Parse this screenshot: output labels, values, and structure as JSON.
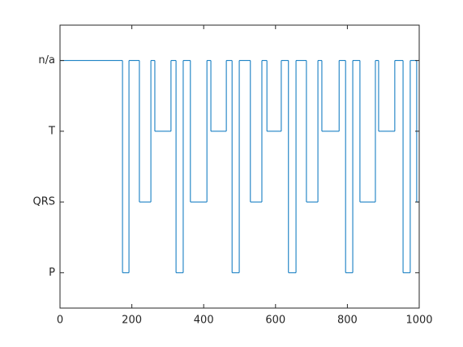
{
  "chart_data": {
    "type": "stairs",
    "x": [
      0,
      174,
      192,
      221,
      253,
      264,
      309,
      323,
      343,
      363,
      409,
      420,
      463,
      479,
      499,
      530,
      562,
      576,
      616,
      636,
      657,
      686,
      718,
      729,
      777,
      795,
      815,
      835,
      878,
      887,
      932,
      955,
      975,
      993,
      1000
    ],
    "values": [
      4,
      1,
      4,
      2,
      4,
      3,
      4,
      1,
      4,
      2,
      4,
      3,
      4,
      1,
      4,
      2,
      4,
      3,
      4,
      1,
      4,
      2,
      4,
      3,
      4,
      1,
      4,
      2,
      4,
      3,
      4,
      1,
      4,
      2,
      2
    ],
    "color": "#0072bd",
    "xlim": [
      0,
      1000
    ],
    "xticks": [
      0,
      200,
      400,
      600,
      800,
      1000
    ],
    "ylim": [
      0.5,
      4.5
    ],
    "yticks": [
      {
        "value": 1,
        "label": "P"
      },
      {
        "value": 2,
        "label": "QRS"
      },
      {
        "value": 3,
        "label": "T"
      },
      {
        "value": 4,
        "label": "n/a"
      }
    ]
  }
}
